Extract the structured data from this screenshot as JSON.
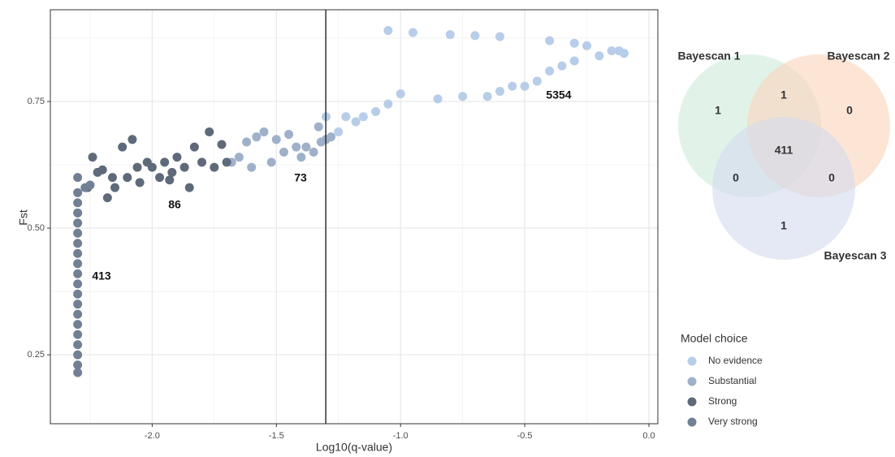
{
  "chart_data": [
    {
      "type": "scatter",
      "x_label": "Log10(q-value)",
      "y_label": "Fst",
      "xlim": [
        -2.41,
        0.036
      ],
      "ylim": [
        0.114,
        0.931
      ],
      "xticks": [
        {
          "value": -2,
          "label": "-2.0"
        },
        -1.5,
        {
          "value": -1,
          "label": "-1.0"
        },
        -0.5,
        {
          "value": 0,
          "label": "0.0"
        }
      ],
      "yticks": [
        0.25,
        {
          "value": 0.5,
          "label": "0.50"
        },
        0.75
      ],
      "x_minor_grid": [
        -2.25,
        -1.75,
        -1.25,
        -0.75,
        -0.25
      ],
      "y_minor_grid": [
        0.375,
        0.625,
        0.875
      ],
      "grid": true,
      "vline": -1.301,
      "legend_title": "Model choice",
      "legend_position": "right",
      "annotations": [
        "413",
        "86",
        "73",
        "5354"
      ],
      "series": [
        {
          "name": "No evidence",
          "color": "#b7cde9",
          "x": [
            -1.3,
            -1.25,
            -1.22,
            -1.18,
            -1.15,
            -1.1,
            -1.05,
            -1.0,
            -0.85,
            -0.75,
            -0.65,
            -0.6,
            -0.55,
            -0.5,
            -0.45,
            -0.4,
            -0.35,
            -0.3,
            -0.2,
            -0.1,
            -0.15,
            -0.25,
            -0.4,
            -0.6,
            -0.8,
            -0.95,
            -1.05,
            -0.7,
            -0.3,
            -0.12
          ],
          "values": [
            0.72,
            0.69,
            0.72,
            0.71,
            0.72,
            0.73,
            0.745,
            0.765,
            0.755,
            0.76,
            0.76,
            0.77,
            0.78,
            0.78,
            0.79,
            0.81,
            0.82,
            0.83,
            0.84,
            0.845,
            0.85,
            0.86,
            0.87,
            0.878,
            0.882,
            0.886,
            0.89,
            0.88,
            0.865,
            0.85
          ]
        },
        {
          "name": "Substantial",
          "color": "#9eb1c9",
          "x": [
            -1.68,
            -1.65,
            -1.62,
            -1.6,
            -1.58,
            -1.55,
            -1.52,
            -1.5,
            -1.47,
            -1.45,
            -1.42,
            -1.4,
            -1.38,
            -1.35,
            -1.33,
            -1.32,
            -1.3,
            -1.28
          ],
          "values": [
            0.63,
            0.64,
            0.67,
            0.62,
            0.68,
            0.69,
            0.63,
            0.675,
            0.65,
            0.685,
            0.66,
            0.64,
            0.66,
            0.65,
            0.7,
            0.67,
            0.675,
            0.68
          ]
        },
        {
          "name": "Strong",
          "color": "#5e6a7a",
          "x": [
            -2.24,
            -2.22,
            -2.2,
            -2.18,
            -2.15,
            -2.12,
            -2.1,
            -2.08,
            -2.05,
            -2.02,
            -2.0,
            -1.97,
            -1.95,
            -1.92,
            -1.9,
            -1.87,
            -1.85,
            -1.83,
            -1.8,
            -1.77,
            -1.75,
            -1.72,
            -1.7,
            -2.16,
            -2.26,
            -2.06,
            -1.93
          ],
          "values": [
            0.64,
            0.61,
            0.615,
            0.56,
            0.58,
            0.66,
            0.6,
            0.675,
            0.59,
            0.63,
            0.62,
            0.6,
            0.63,
            0.61,
            0.64,
            0.62,
            0.58,
            0.66,
            0.63,
            0.69,
            0.62,
            0.665,
            0.63,
            0.6,
            0.58,
            0.62,
            0.595
          ]
        },
        {
          "name": "Very strong",
          "color": "#718094",
          "x": [
            -2.3,
            -2.3,
            -2.3,
            -2.3,
            -2.3,
            -2.3,
            -2.3,
            -2.3,
            -2.3,
            -2.3,
            -2.3,
            -2.3,
            -2.3,
            -2.3,
            -2.3,
            -2.3,
            -2.3,
            -2.3,
            -2.3,
            -2.3,
            -2.27,
            -2.25
          ],
          "values": [
            0.215,
            0.23,
            0.25,
            0.27,
            0.29,
            0.31,
            0.33,
            0.35,
            0.37,
            0.39,
            0.41,
            0.43,
            0.45,
            0.47,
            0.49,
            0.51,
            0.53,
            0.55,
            0.57,
            0.6,
            0.58,
            0.585
          ]
        }
      ]
    },
    {
      "type": "venn",
      "sets": [
        "Bayescan 1",
        "Bayescan 2",
        "Bayescan 3"
      ],
      "colors": [
        "#cdebd9",
        "#fbd3bb",
        "#d3dbee"
      ],
      "values": [
        1,
        1,
        0,
        411,
        0,
        0,
        1
      ]
    }
  ]
}
